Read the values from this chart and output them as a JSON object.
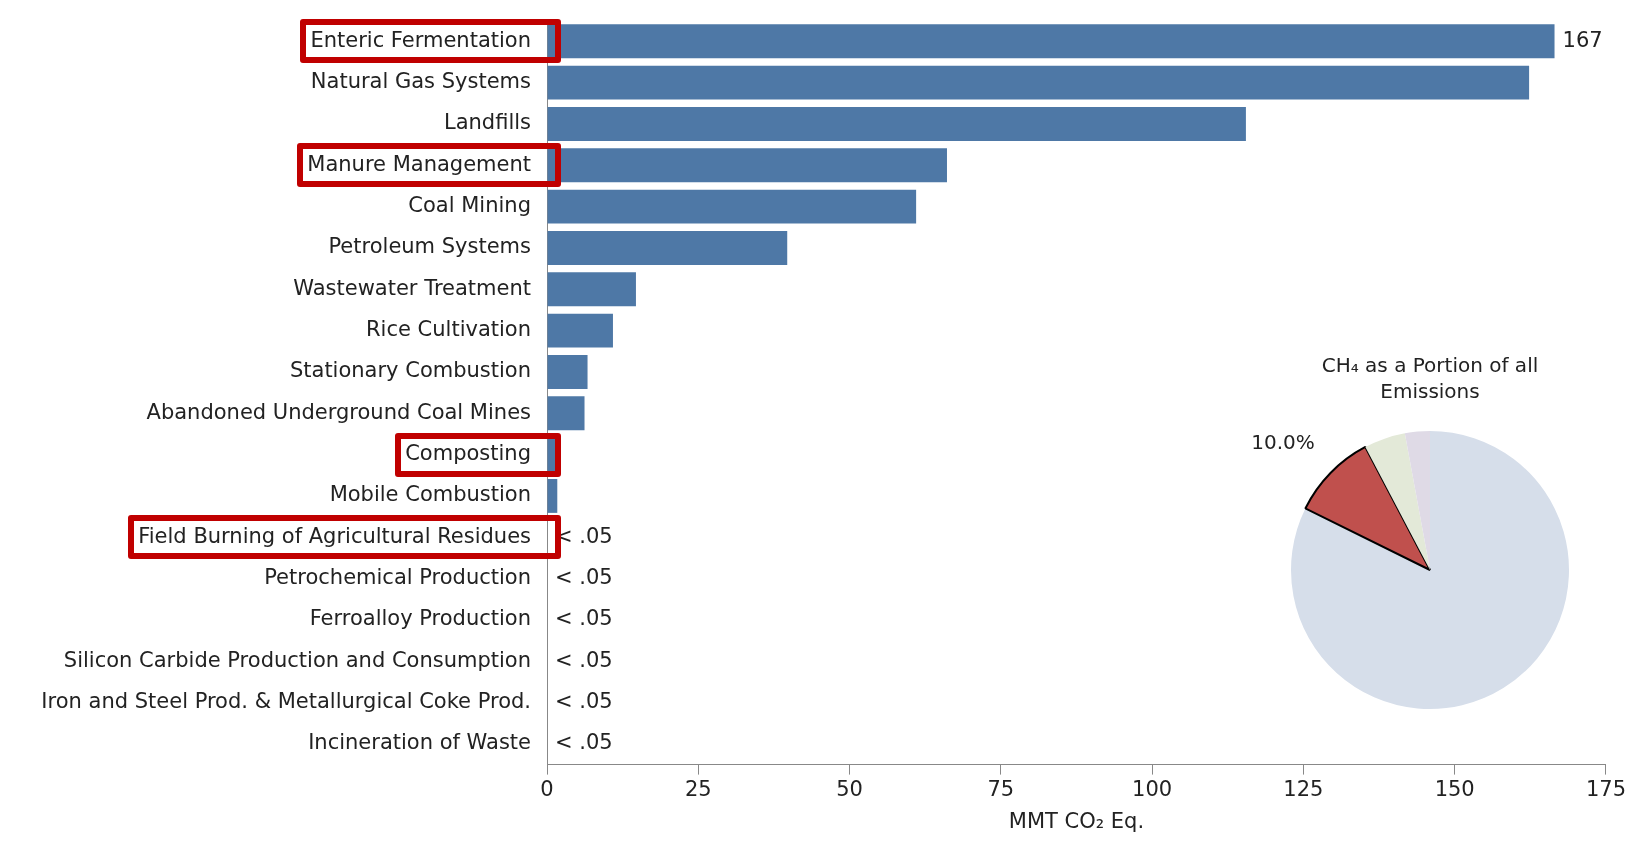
{
  "chart_data": [
    {
      "type": "bar",
      "orientation": "horizontal",
      "categories": [
        "Enteric Fermentation",
        "Natural Gas Systems",
        "Landfills",
        "Manure Management",
        "Coal Mining",
        "Petroleum Systems",
        "Wastewater Treatment",
        "Rice Cultivation",
        "Stationary Combustion",
        "Abandoned Underground Coal Mines",
        "Composting",
        "Mobile Combustion",
        "Field Burning of Agricultural Residues",
        "Petrochemical Production",
        "Ferroalloy Production",
        "Silicon Carbide Production and Consumption",
        "Iron and Steel Prod. & Metallurgical Coke Prod.",
        "Incineration of Waste"
      ],
      "values": [
        166.5,
        162.3,
        115.5,
        66.1,
        61.0,
        39.7,
        14.7,
        10.9,
        6.7,
        6.2,
        1.7,
        1.7,
        0,
        0,
        0,
        0,
        0,
        0
      ],
      "value_labels": [
        "167",
        null,
        null,
        null,
        null,
        null,
        null,
        null,
        null,
        null,
        null,
        null,
        "< .05",
        "< .05",
        "< .05",
        "< .05",
        "< .05",
        "< .05"
      ],
      "color": "#4e78a6",
      "xlabel": "MMT CO₂ Eq.",
      "xlim": [
        0,
        175
      ],
      "xticks": [
        0,
        25,
        50,
        75,
        100,
        125,
        150,
        175
      ],
      "grid": false,
      "legend": false
    },
    {
      "type": "pie",
      "title": "CH₄ as a Portion of all Emissions",
      "categories": [
        null,
        null,
        null,
        null
      ],
      "values": [
        82.3,
        10.0,
        4.8,
        2.9
      ],
      "colors": [
        "#d6deea",
        "#c0504d",
        "#e3e9d8",
        "#dfdae6"
      ],
      "value_labels": [
        null,
        "10.0%",
        null,
        null
      ],
      "legend": false
    }
  ]
}
